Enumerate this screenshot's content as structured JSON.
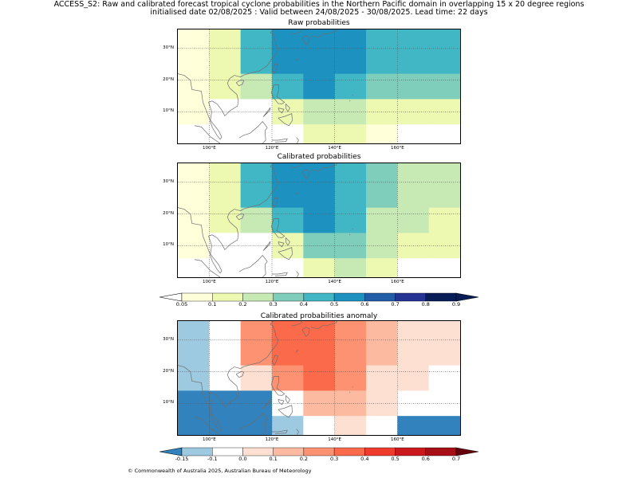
{
  "header": {
    "line1": "ACCESS_S2: Raw and calibrated forecast tropical cyclone probabilities in the Northern Pacific domain in overlapping 15 x 20 degree regions",
    "line2": "initialised date 02/08/2025 :  Valid between 24/08/2025 - 30/08/2025. Lead time: 22 days"
  },
  "panels": [
    {
      "title": "Raw probabilities"
    },
    {
      "title": "Calibrated probabilities"
    },
    {
      "title": "Calibrated probabilities anomaly"
    }
  ],
  "axes": {
    "lat_labels": [
      "30°N",
      "20°N",
      "10°N"
    ],
    "lon_labels": [
      "100°E",
      "120°E",
      "140°E",
      "160°E"
    ]
  },
  "prob_colorbar": {
    "labels": [
      "0.05",
      "0.1",
      "0.2",
      "0.3",
      "0.4",
      "0.5",
      "0.6",
      "0.7",
      "0.8",
      "0.9"
    ],
    "colors": [
      "#ffffd9",
      "#edf8b1",
      "#c7e9b4",
      "#7fcdbb",
      "#41b6c4",
      "#1d91c0",
      "#225ea8",
      "#253494",
      "#081d58"
    ],
    "under_color": "#ffffff",
    "over_color": "#081d58"
  },
  "anom_colorbar": {
    "labels": [
      "-0.15",
      "-0.1",
      "0.0",
      "0.1",
      "0.2",
      "0.3",
      "0.4",
      "0.5",
      "0.6",
      "0.7"
    ],
    "colors": [
      "#9ecae1",
      "#ffffff",
      "#fee0d2",
      "#fcbba1",
      "#fc9272",
      "#fb6a4a",
      "#ef3b2c",
      "#cb181d",
      "#a50f15"
    ],
    "under_color": "#3182bd",
    "over_color": "#67000d"
  },
  "grid": {
    "lon_edges": [
      90,
      100,
      110,
      120,
      130,
      140,
      150,
      160,
      170,
      180
    ],
    "lat_edges": [
      36,
      30,
      22,
      14,
      6,
      0
    ]
  },
  "maps": {
    "raw": [
      [
        "#ffffd9",
        "#edf8b1",
        "#41b6c4",
        "#1d91c0",
        "#1d91c0",
        "#1d91c0",
        "#41b6c4",
        "#41b6c4",
        "#41b6c4"
      ],
      [
        "#ffffd9",
        "#edf8b1",
        "#41b6c4",
        "#1d91c0",
        "#1d91c0",
        "#1d91c0",
        "#41b6c4",
        "#41b6c4",
        "#41b6c4"
      ],
      [
        "#ffffd9",
        "#edf8b1",
        "#c7e9b4",
        "#41b6c4",
        "#1d91c0",
        "#41b6c4",
        "#7fcdbb",
        "#7fcdbb",
        "#7fcdbb"
      ],
      [
        "#ffffd9",
        "#ffffff",
        "#ffffff",
        "#edf8b1",
        "#c7e9b4",
        "#c7e9b4",
        "#edf8b1",
        "#edf8b1",
        "#edf8b1"
      ],
      [
        "#ffffff",
        "#ffffff",
        "#ffffff",
        "#ffffff",
        "#edf8b1",
        "#edf8b1",
        "#ffffd9",
        "#ffffff",
        "#ffffff"
      ]
    ],
    "calibrated": [
      [
        "#ffffd9",
        "#edf8b1",
        "#41b6c4",
        "#1d91c0",
        "#1d91c0",
        "#41b6c4",
        "#7fcdbb",
        "#c7e9b4",
        "#c7e9b4"
      ],
      [
        "#ffffd9",
        "#edf8b1",
        "#41b6c4",
        "#1d91c0",
        "#1d91c0",
        "#41b6c4",
        "#7fcdbb",
        "#c7e9b4",
        "#c7e9b4"
      ],
      [
        "#ffffd9",
        "#edf8b1",
        "#c7e9b4",
        "#41b6c4",
        "#1d91c0",
        "#41b6c4",
        "#c7e9b4",
        "#c7e9b4",
        "#edf8b1"
      ],
      [
        "#ffffd9",
        "#ffffff",
        "#ffffff",
        "#edf8b1",
        "#7fcdbb",
        "#7fcdbb",
        "#c7e9b4",
        "#edf8b1",
        "#edf8b1"
      ],
      [
        "#ffffff",
        "#ffffff",
        "#ffffff",
        "#ffffff",
        "#edf8b1",
        "#c7e9b4",
        "#edf8b1",
        "#ffffff",
        "#ffffff"
      ]
    ],
    "anomaly": [
      [
        "#9ecae1",
        "#ffffff",
        "#fc9272",
        "#fb6a4a",
        "#fb6a4a",
        "#fc9272",
        "#fcbba1",
        "#fee0d2",
        "#fee0d2"
      ],
      [
        "#9ecae1",
        "#ffffff",
        "#fc9272",
        "#fb6a4a",
        "#fb6a4a",
        "#fc9272",
        "#fcbba1",
        "#fee0d2",
        "#fee0d2"
      ],
      [
        "#9ecae1",
        "#ffffff",
        "#fee0d2",
        "#fc9272",
        "#fb6a4a",
        "#fc9272",
        "#fee0d2",
        "#fee0d2",
        "#ffffff"
      ],
      [
        "#3182bd",
        "#3182bd",
        "#3182bd",
        "#ffffff",
        "#fcbba1",
        "#fcbba1",
        "#fee0d2",
        "#ffffff",
        "#ffffff"
      ],
      [
        "#3182bd",
        "#3182bd",
        "#3182bd",
        "#9ecae1",
        "#ffffff",
        "#fee0d2",
        "#ffffff",
        "#3182bd",
        "#3182bd"
      ]
    ]
  },
  "footer": {
    "copyright": "© Commonwealth of Australia 2025, Australian Bureau of Meteorology"
  }
}
